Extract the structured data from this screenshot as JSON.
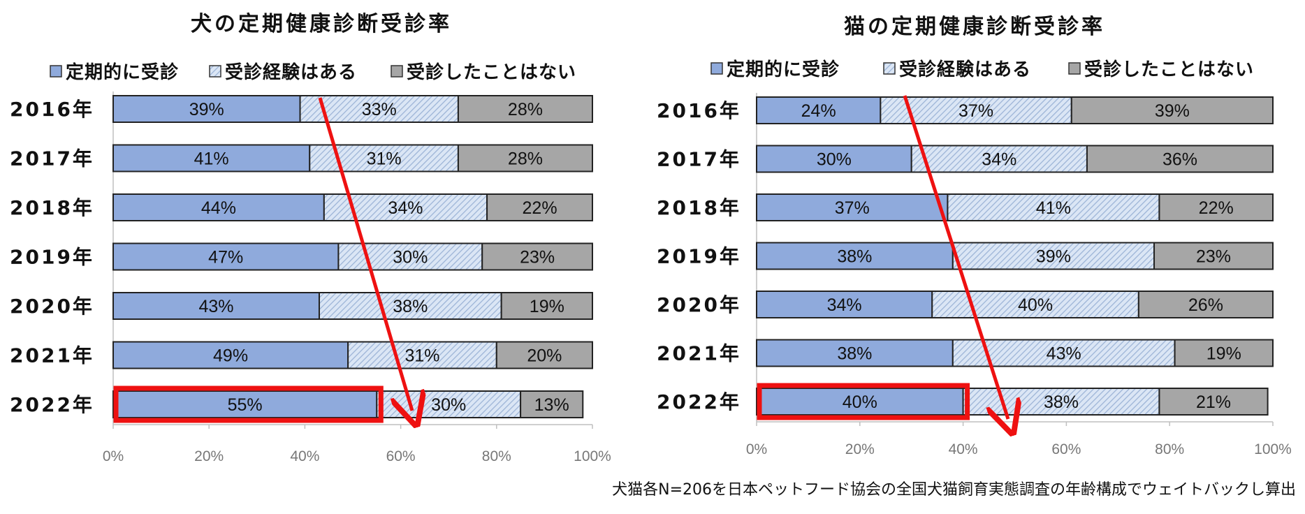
{
  "footnote": "犬猫各N=206を日本ペットフード協会の全国犬猫飼育実態調査の年齢構成でウェイトバックし算出",
  "colors": {
    "regular": "#8faadc",
    "experienced": "#dbe6f5",
    "hatch": "#9bb3d6",
    "never": "#a6a6a6",
    "highlight": "#ee1111",
    "arrow": "#ee1111"
  },
  "chart_data": [
    {
      "type": "bar",
      "orientation": "horizontal",
      "stacked": true,
      "title": "犬の定期健康診断受診率",
      "legend": [
        "定期的に受診",
        "受診経験はある",
        "受診したことはない"
      ],
      "categories": [
        "2016年",
        "2017年",
        "2018年",
        "2019年",
        "2020年",
        "2021年",
        "2022年"
      ],
      "series": [
        {
          "name": "定期的に受診",
          "values": [
            39,
            41,
            44,
            47,
            43,
            49,
            55
          ]
        },
        {
          "name": "受診経験はある",
          "values": [
            33,
            31,
            34,
            30,
            38,
            31,
            30
          ]
        },
        {
          "name": "受診したことはない",
          "values": [
            28,
            28,
            22,
            23,
            19,
            20,
            13
          ]
        }
      ],
      "xlim": [
        0,
        100
      ],
      "x_ticks": [
        "0%",
        "20%",
        "40%",
        "60%",
        "80%",
        "100%"
      ],
      "highlight_category": "2022年",
      "annotation": "arrow from 2016 to 2022 showing increase"
    },
    {
      "type": "bar",
      "orientation": "horizontal",
      "stacked": true,
      "title": "猫の定期健康診断受診率",
      "legend": [
        "定期的に受診",
        "受診経験はある",
        "受診したことはない"
      ],
      "categories": [
        "2016年",
        "2017年",
        "2018年",
        "2019年",
        "2020年",
        "2021年",
        "2022年"
      ],
      "series": [
        {
          "name": "定期的に受診",
          "values": [
            24,
            30,
            37,
            38,
            34,
            38,
            40
          ]
        },
        {
          "name": "受診経験はある",
          "values": [
            37,
            34,
            41,
            39,
            40,
            43,
            38
          ]
        },
        {
          "name": "受診したことはない",
          "values": [
            39,
            36,
            22,
            23,
            26,
            19,
            21
          ]
        }
      ],
      "xlim": [
        0,
        100
      ],
      "x_ticks": [
        "0%",
        "20%",
        "40%",
        "60%",
        "80%",
        "100%"
      ],
      "highlight_category": "2022年",
      "annotation": "arrow from 2016 to 2022 showing increase"
    }
  ]
}
